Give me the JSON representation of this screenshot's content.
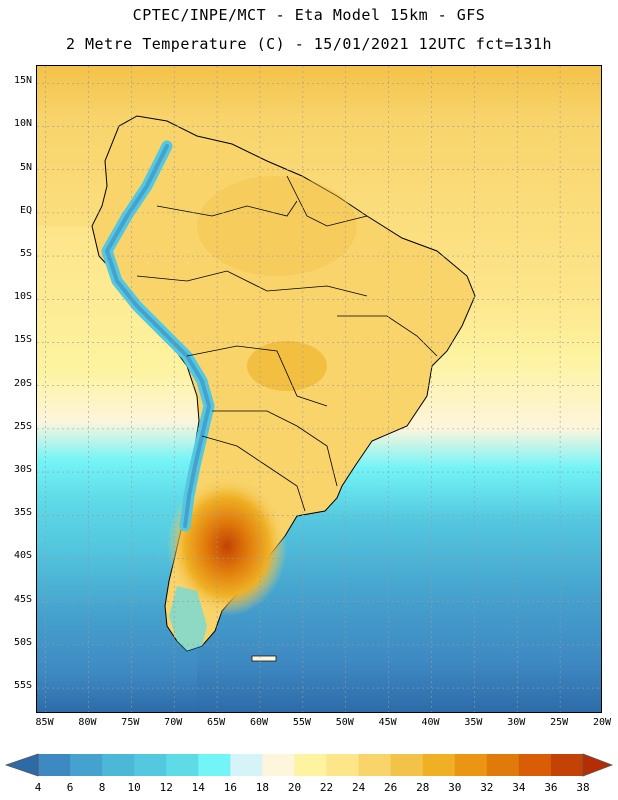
{
  "header": {
    "line1": "CPTEC/INPE/MCT -  Eta Model 15km - GFS",
    "line2": "2 Metre Temperature (C) - 15/01/2021 12UTC fct=131h"
  },
  "map": {
    "lat_labels": [
      "15N",
      "10N",
      "5N",
      "EQ",
      "5S",
      "10S",
      "15S",
      "20S",
      "25S",
      "30S",
      "35S",
      "40S",
      "45S",
      "50S",
      "55S"
    ],
    "lon_labels": [
      "85W",
      "80W",
      "75W",
      "70W",
      "65W",
      "60W",
      "55W",
      "50W",
      "45W",
      "40W",
      "35W",
      "30W",
      "25W",
      "20W"
    ],
    "lat_range": [
      17,
      -58
    ],
    "lon_range": [
      -86,
      -20
    ]
  },
  "colorbar": {
    "labels": [
      "4",
      "6",
      "8",
      "10",
      "12",
      "14",
      "16",
      "18",
      "20",
      "22",
      "24",
      "26",
      "28",
      "30",
      "32",
      "34",
      "36",
      "38"
    ],
    "colors": [
      "#2c6aa8",
      "#3e89c2",
      "#45a1cd",
      "#4bb8d8",
      "#54c8df",
      "#5fdbe8",
      "#73f4f7",
      "#d6f3f8",
      "#fdf5dc",
      "#fdf3a0",
      "#fde58a",
      "#f8d46b",
      "#f3c249",
      "#efb025",
      "#eb9515",
      "#e07a0b",
      "#d85d06",
      "#c24305",
      "#b52e03"
    ]
  },
  "icons": {
    "left_arrow": "colorbar-left-arrow-icon",
    "right_arrow": "colorbar-right-arrow-icon"
  }
}
